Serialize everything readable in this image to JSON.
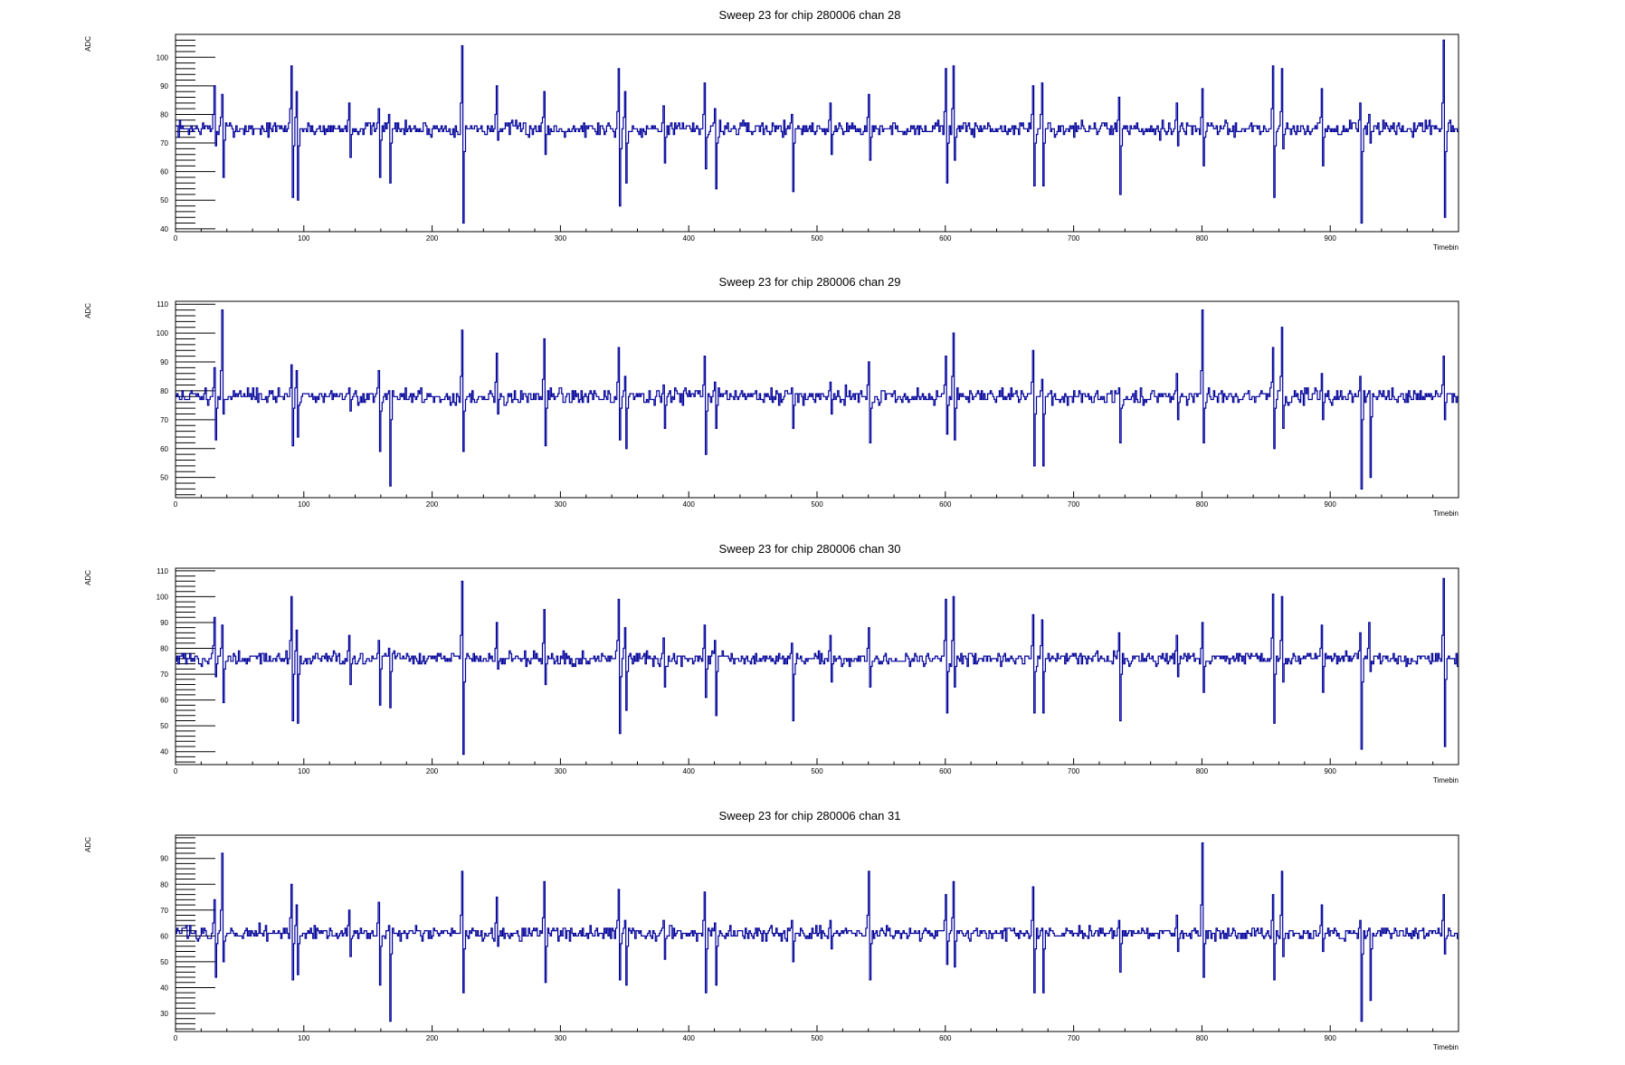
{
  "chart_data": [
    {
      "type": "line",
      "title": "Sweep 23 for chip 280006 chan 28",
      "xlabel": "Timebin",
      "ylabel": "ADC",
      "xlim": [
        0,
        1000
      ],
      "ylim": [
        39,
        108
      ],
      "xticks": [
        0,
        100,
        200,
        300,
        400,
        500,
        600,
        700,
        800,
        900
      ],
      "yticks": [
        40,
        50,
        60,
        70,
        80,
        90,
        100
      ],
      "baseline": 75,
      "noise": 1.6,
      "color": "#000099",
      "spikes": [
        {
          "x": 30,
          "high": 90,
          "low": 69
        },
        {
          "x": 36,
          "high": 87,
          "low": 58
        },
        {
          "x": 90,
          "high": 97,
          "low": 51
        },
        {
          "x": 94,
          "high": 88,
          "low": 50
        },
        {
          "x": 135,
          "high": 84,
          "low": 65
        },
        {
          "x": 158,
          "high": 82,
          "low": 58
        },
        {
          "x": 166,
          "high": 80,
          "low": 56
        },
        {
          "x": 223,
          "high": 104,
          "low": 42
        },
        {
          "x": 250,
          "high": 90,
          "low": 71
        },
        {
          "x": 287,
          "high": 88,
          "low": 66
        },
        {
          "x": 345,
          "high": 96,
          "low": 48
        },
        {
          "x": 350,
          "high": 88,
          "low": 56
        },
        {
          "x": 380,
          "high": 83,
          "low": 63
        },
        {
          "x": 412,
          "high": 91,
          "low": 61
        },
        {
          "x": 420,
          "high": 82,
          "low": 54
        },
        {
          "x": 480,
          "high": 80,
          "low": 53
        },
        {
          "x": 510,
          "high": 84,
          "low": 66
        },
        {
          "x": 540,
          "high": 87,
          "low": 64
        },
        {
          "x": 600,
          "high": 96,
          "low": 56
        },
        {
          "x": 606,
          "high": 97,
          "low": 64
        },
        {
          "x": 668,
          "high": 90,
          "low": 55
        },
        {
          "x": 675,
          "high": 91,
          "low": 55
        },
        {
          "x": 735,
          "high": 86,
          "low": 52
        },
        {
          "x": 780,
          "high": 84,
          "low": 69
        },
        {
          "x": 800,
          "high": 89,
          "low": 62
        },
        {
          "x": 855,
          "high": 97,
          "low": 51
        },
        {
          "x": 862,
          "high": 96,
          "low": 68
        },
        {
          "x": 893,
          "high": 89,
          "low": 62
        },
        {
          "x": 923,
          "high": 84,
          "low": 42
        },
        {
          "x": 930,
          "high": 80,
          "low": 70
        },
        {
          "x": 988,
          "high": 106,
          "low": 44
        }
      ]
    },
    {
      "type": "line",
      "title": "Sweep 23 for chip 280006 chan 29",
      "xlabel": "Timebin",
      "ylabel": "ADC",
      "xlim": [
        0,
        1000
      ],
      "ylim": [
        43,
        111
      ],
      "xticks": [
        0,
        100,
        200,
        300,
        400,
        500,
        600,
        700,
        800,
        900
      ],
      "yticks": [
        50,
        60,
        70,
        80,
        90,
        100,
        110
      ],
      "baseline": 78,
      "noise": 1.6,
      "color": "#000099",
      "spikes": [
        {
          "x": 30,
          "high": 88,
          "low": 63
        },
        {
          "x": 36,
          "high": 108,
          "low": 72
        },
        {
          "x": 90,
          "high": 89,
          "low": 61
        },
        {
          "x": 94,
          "high": 87,
          "low": 64
        },
        {
          "x": 135,
          "high": 81,
          "low": 73
        },
        {
          "x": 158,
          "high": 87,
          "low": 59
        },
        {
          "x": 166,
          "high": 80,
          "low": 47
        },
        {
          "x": 223,
          "high": 101,
          "low": 59
        },
        {
          "x": 250,
          "high": 93,
          "low": 72
        },
        {
          "x": 287,
          "high": 98,
          "low": 61
        },
        {
          "x": 345,
          "high": 95,
          "low": 63
        },
        {
          "x": 350,
          "high": 85,
          "low": 60
        },
        {
          "x": 380,
          "high": 82,
          "low": 67
        },
        {
          "x": 412,
          "high": 92,
          "low": 58
        },
        {
          "x": 420,
          "high": 83,
          "low": 67
        },
        {
          "x": 480,
          "high": 81,
          "low": 67
        },
        {
          "x": 510,
          "high": 83,
          "low": 72
        },
        {
          "x": 540,
          "high": 90,
          "low": 62
        },
        {
          "x": 600,
          "high": 92,
          "low": 65
        },
        {
          "x": 606,
          "high": 100,
          "low": 63
        },
        {
          "x": 668,
          "high": 94,
          "low": 54
        },
        {
          "x": 675,
          "high": 84,
          "low": 54
        },
        {
          "x": 735,
          "high": 81,
          "low": 62
        },
        {
          "x": 780,
          "high": 86,
          "low": 70
        },
        {
          "x": 800,
          "high": 108,
          "low": 62
        },
        {
          "x": 855,
          "high": 95,
          "low": 60
        },
        {
          "x": 862,
          "high": 102,
          "low": 67
        },
        {
          "x": 893,
          "high": 86,
          "low": 70
        },
        {
          "x": 923,
          "high": 85,
          "low": 46
        },
        {
          "x": 930,
          "high": 80,
          "low": 50
        },
        {
          "x": 988,
          "high": 92,
          "low": 70
        }
      ]
    },
    {
      "type": "line",
      "title": "Sweep 23 for chip 280006 chan 30",
      "xlabel": "Timebin",
      "ylabel": "ADC",
      "xlim": [
        0,
        1000
      ],
      "ylim": [
        35,
        111
      ],
      "xticks": [
        0,
        100,
        200,
        300,
        400,
        500,
        600,
        700,
        800,
        900
      ],
      "yticks": [
        40,
        50,
        60,
        70,
        80,
        90,
        100,
        110
      ],
      "baseline": 76,
      "noise": 1.6,
      "color": "#000099",
      "spikes": [
        {
          "x": 30,
          "high": 92,
          "low": 69
        },
        {
          "x": 36,
          "high": 89,
          "low": 59
        },
        {
          "x": 90,
          "high": 100,
          "low": 52
        },
        {
          "x": 94,
          "high": 87,
          "low": 51
        },
        {
          "x": 135,
          "high": 85,
          "low": 66
        },
        {
          "x": 158,
          "high": 83,
          "low": 58
        },
        {
          "x": 166,
          "high": 80,
          "low": 57
        },
        {
          "x": 223,
          "high": 106,
          "low": 39
        },
        {
          "x": 250,
          "high": 90,
          "low": 72
        },
        {
          "x": 287,
          "high": 95,
          "low": 66
        },
        {
          "x": 345,
          "high": 99,
          "low": 47
        },
        {
          "x": 350,
          "high": 88,
          "low": 56
        },
        {
          "x": 380,
          "high": 84,
          "low": 65
        },
        {
          "x": 412,
          "high": 89,
          "low": 61
        },
        {
          "x": 420,
          "high": 83,
          "low": 54
        },
        {
          "x": 480,
          "high": 82,
          "low": 52
        },
        {
          "x": 510,
          "high": 85,
          "low": 67
        },
        {
          "x": 540,
          "high": 88,
          "low": 65
        },
        {
          "x": 600,
          "high": 99,
          "low": 55
        },
        {
          "x": 606,
          "high": 100,
          "low": 65
        },
        {
          "x": 668,
          "high": 93,
          "low": 55
        },
        {
          "x": 675,
          "high": 91,
          "low": 55
        },
        {
          "x": 735,
          "high": 86,
          "low": 52
        },
        {
          "x": 780,
          "high": 85,
          "low": 69
        },
        {
          "x": 800,
          "high": 90,
          "low": 63
        },
        {
          "x": 855,
          "high": 101,
          "low": 51
        },
        {
          "x": 862,
          "high": 100,
          "low": 67
        },
        {
          "x": 893,
          "high": 89,
          "low": 63
        },
        {
          "x": 923,
          "high": 86,
          "low": 41
        },
        {
          "x": 930,
          "high": 90,
          "low": 71
        },
        {
          "x": 988,
          "high": 107,
          "low": 42
        }
      ]
    },
    {
      "type": "line",
      "title": "Sweep 23 for chip 280006 chan 31",
      "xlabel": "Timebin",
      "ylabel": "ADC",
      "xlim": [
        0,
        1000
      ],
      "ylim": [
        23,
        99
      ],
      "xticks": [
        0,
        100,
        200,
        300,
        400,
        500,
        600,
        700,
        800,
        900
      ],
      "yticks": [
        30,
        40,
        50,
        60,
        70,
        80,
        90
      ],
      "baseline": 61,
      "noise": 1.6,
      "color": "#000099",
      "spikes": [
        {
          "x": 30,
          "high": 74,
          "low": 44
        },
        {
          "x": 36,
          "high": 92,
          "low": 50
        },
        {
          "x": 90,
          "high": 80,
          "low": 43
        },
        {
          "x": 94,
          "high": 72,
          "low": 45
        },
        {
          "x": 135,
          "high": 70,
          "low": 52
        },
        {
          "x": 158,
          "high": 73,
          "low": 41
        },
        {
          "x": 166,
          "high": 64,
          "low": 27
        },
        {
          "x": 223,
          "high": 85,
          "low": 38
        },
        {
          "x": 250,
          "high": 75,
          "low": 56
        },
        {
          "x": 287,
          "high": 81,
          "low": 42
        },
        {
          "x": 345,
          "high": 78,
          "low": 43
        },
        {
          "x": 350,
          "high": 66,
          "low": 41
        },
        {
          "x": 380,
          "high": 66,
          "low": 51
        },
        {
          "x": 412,
          "high": 77,
          "low": 38
        },
        {
          "x": 420,
          "high": 65,
          "low": 41
        },
        {
          "x": 480,
          "high": 66,
          "low": 50
        },
        {
          "x": 510,
          "high": 66,
          "low": 55
        },
        {
          "x": 540,
          "high": 85,
          "low": 43
        },
        {
          "x": 600,
          "high": 76,
          "low": 49
        },
        {
          "x": 606,
          "high": 81,
          "low": 48
        },
        {
          "x": 668,
          "high": 79,
          "low": 38
        },
        {
          "x": 675,
          "high": 63,
          "low": 38
        },
        {
          "x": 735,
          "high": 66,
          "low": 46
        },
        {
          "x": 780,
          "high": 68,
          "low": 54
        },
        {
          "x": 800,
          "high": 96,
          "low": 44
        },
        {
          "x": 855,
          "high": 76,
          "low": 43
        },
        {
          "x": 862,
          "high": 85,
          "low": 52
        },
        {
          "x": 893,
          "high": 72,
          "low": 54
        },
        {
          "x": 923,
          "high": 66,
          "low": 27
        },
        {
          "x": 930,
          "high": 63,
          "low": 35
        },
        {
          "x": 988,
          "high": 76,
          "low": 53
        }
      ]
    }
  ]
}
